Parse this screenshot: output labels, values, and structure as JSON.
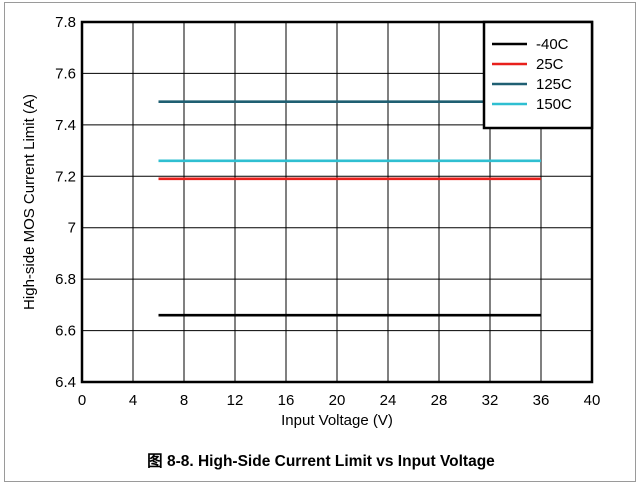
{
  "caption": "图 8-8. High-Side Current Limit vs Input Voltage",
  "chart_data": {
    "type": "line",
    "title": "",
    "xlabel": "Input Voltage (V)",
    "ylabel": "High-side MOS Current Limit (A)",
    "xlim": [
      0,
      40
    ],
    "ylim": [
      6.4,
      7.8
    ],
    "x_ticks": [
      "0",
      "4",
      "8",
      "12",
      "16",
      "20",
      "24",
      "28",
      "32",
      "36",
      "40"
    ],
    "y_ticks": [
      "6.4",
      "6.6",
      "6.8",
      "7",
      "7.2",
      "7.4",
      "7.6",
      "7.8"
    ],
    "grid": true,
    "legend_position": "top-right",
    "series": [
      {
        "name": "-40C",
        "color": "#000000",
        "x": [
          6,
          36
        ],
        "y": [
          6.66,
          6.66
        ]
      },
      {
        "name": "25C",
        "color": "#e8201c",
        "x": [
          6,
          36
        ],
        "y": [
          7.19,
          7.19
        ]
      },
      {
        "name": "125C",
        "color": "#1f5f72",
        "x": [
          6,
          36
        ],
        "y": [
          7.49,
          7.49
        ]
      },
      {
        "name": "150C",
        "color": "#2fbfd1",
        "x": [
          6,
          36
        ],
        "y": [
          7.26,
          7.26
        ]
      }
    ]
  }
}
